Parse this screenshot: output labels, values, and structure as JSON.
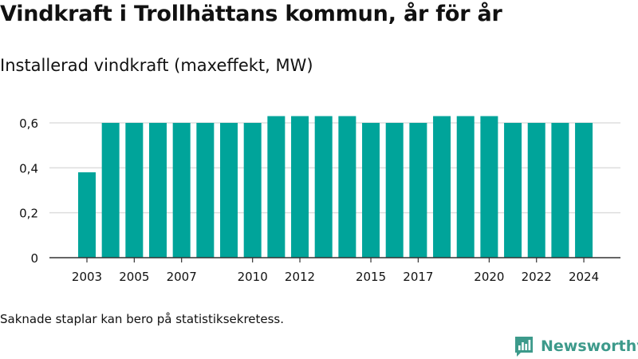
{
  "title": "Vindkraft i Trollhättans kommun, år för år",
  "subtitle": "Installerad vindkraft (maxeffekt, MW)",
  "note": "Saknade staplar kan bero på statistiksekretess.",
  "brand": {
    "name": "Newsworthy",
    "color": "#3d9a8b",
    "icon": "newsworthy-logo-icon"
  },
  "colors": {
    "bar": "#00a49a",
    "grid": "#dddddd",
    "axis": "#333333",
    "text": "#111111"
  },
  "chart_data": {
    "type": "bar",
    "categories": [
      "2003",
      "2004",
      "2005",
      "2006",
      "2007",
      "2008",
      "2009",
      "2010",
      "2011",
      "2012",
      "2013",
      "2014",
      "2015",
      "2016",
      "2017",
      "2018",
      "2019",
      "2020",
      "2021",
      "2022",
      "2023",
      "2024"
    ],
    "values": [
      0.38,
      0.6,
      0.6,
      0.6,
      0.6,
      0.6,
      0.6,
      0.6,
      0.63,
      0.63,
      0.63,
      0.63,
      0.6,
      0.6,
      0.6,
      0.63,
      0.63,
      0.63,
      0.6,
      0.6,
      0.6,
      0.6
    ],
    "x_tick_labels": [
      "2003",
      "2005",
      "2007",
      "2010",
      "2012",
      "2015",
      "2017",
      "2020",
      "2022",
      "2024"
    ],
    "y_ticks": [
      0,
      0.2,
      0.4,
      0.6
    ],
    "y_tick_labels": [
      "0",
      "0,2",
      "0,4",
      "0,6"
    ],
    "ylim": [
      0,
      0.6
    ],
    "grid": true,
    "legend": "none",
    "xlabel": "",
    "ylabel": ""
  }
}
